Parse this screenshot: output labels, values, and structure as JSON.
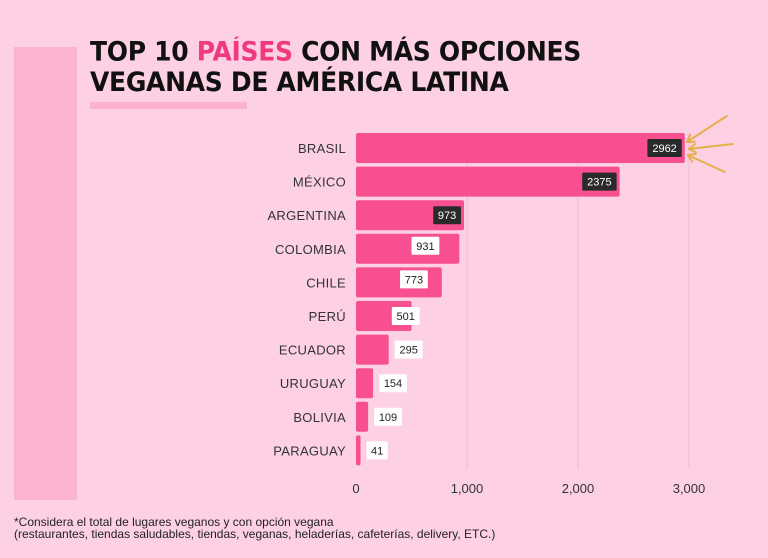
{
  "title": {
    "line1_pre": "TOP 10 ",
    "line1_accent": "PAÍSES",
    "line1_post": " CON MÁS OPCIONES",
    "line2": "VEGANAS DE AMÉRICA LATINA"
  },
  "colors": {
    "background": "#fdd1e3",
    "bar": "#f74f8f",
    "accent": "#f0397f",
    "arrow": "#e4b04a",
    "label_dark_bg": "#2a2a2a",
    "label_light_bg": "#ffffff"
  },
  "chart_data": {
    "type": "bar",
    "orientation": "horizontal",
    "title": "TOP 10 PAÍSES CON MÁS OPCIONES VEGANAS DE AMÉRICA LATINA",
    "categories": [
      "BRASIL",
      "MÉXICO",
      "ARGENTINA",
      "COLOMBIA",
      "CHILE",
      "PERÚ",
      "ECUADOR",
      "URUGUAY",
      "BOLIVIA",
      "PARAGUAY"
    ],
    "values": [
      2962,
      2375,
      973,
      931,
      773,
      501,
      295,
      154,
      109,
      41
    ],
    "value_labels": [
      "2962",
      "2375",
      "973",
      "931",
      "773",
      "501",
      "295",
      "154",
      "109",
      "41"
    ],
    "xlim": [
      0,
      3000
    ],
    "xticks": [
      0,
      1000,
      2000,
      3000
    ],
    "xtick_labels": [
      "0",
      "1,000",
      "2,000",
      "3,000"
    ],
    "xlabel": "",
    "ylabel": "",
    "grid": true,
    "legend": "none",
    "annotation": "arrows pointing at BRASIL bar"
  },
  "footnote": {
    "line1": "*Considera el total de lugares veganos y con opción vegana",
    "line2": "(restaurantes, tiendas saludables, tiendas, veganas, heladerías, cafeterías, delivery, ETC.)"
  }
}
